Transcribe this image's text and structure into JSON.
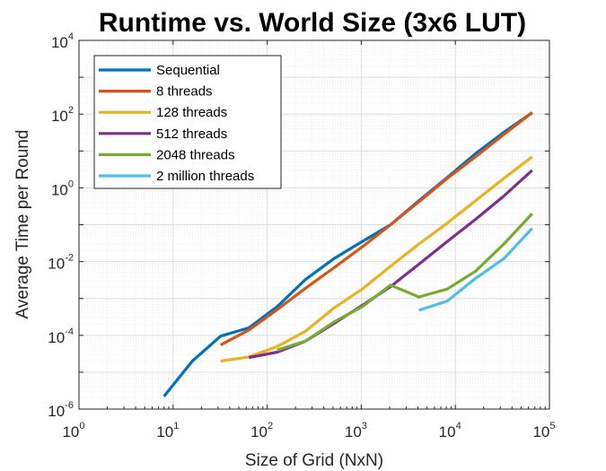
{
  "chart_data": {
    "type": "line",
    "title": "Runtime vs. World Size (3x6 LUT)",
    "xlabel": "Size of Grid (NxN)",
    "ylabel": "Average Time per Round",
    "x_scale": "log",
    "y_scale": "log",
    "xlim": [
      1,
      100000
    ],
    "ylim": [
      1e-06,
      10000
    ],
    "x_ticks": [
      {
        "base": "10",
        "exp": "0"
      },
      {
        "base": "10",
        "exp": "1"
      },
      {
        "base": "10",
        "exp": "2"
      },
      {
        "base": "10",
        "exp": "3"
      },
      {
        "base": "10",
        "exp": "4"
      },
      {
        "base": "10",
        "exp": "5"
      }
    ],
    "y_ticks": [
      {
        "base": "10",
        "exp": "-6"
      },
      {
        "base": "10",
        "exp": "-4"
      },
      {
        "base": "10",
        "exp": "-2"
      },
      {
        "base": "10",
        "exp": "0"
      },
      {
        "base": "10",
        "exp": "2"
      },
      {
        "base": "10",
        "exp": "4"
      }
    ],
    "grid": true,
    "legend_position": "top-left",
    "series": [
      {
        "name": "Sequential",
        "color": "#0072BD",
        "x": [
          8,
          16,
          32,
          64,
          128,
          256,
          512,
          1024,
          2048,
          4096,
          8192,
          16384,
          32768,
          65536
        ],
        "y": [
          2.2e-06,
          2e-05,
          9.5e-05,
          0.00016,
          0.0006,
          0.0033,
          0.012,
          0.035,
          0.1,
          0.45,
          1.9,
          8.5,
          32,
          110
        ]
      },
      {
        "name": "8 threads",
        "color": "#D95319",
        "x": [
          32,
          64,
          128,
          256,
          512,
          1024,
          2048,
          4096,
          8192,
          16384,
          32768,
          65536
        ],
        "y": [
          5.5e-05,
          0.00014,
          0.0005,
          0.0019,
          0.0068,
          0.025,
          0.1,
          0.42,
          1.8,
          7,
          28,
          110
        ]
      },
      {
        "name": "128 threads",
        "color": "#EDB120",
        "x": [
          32,
          64,
          128,
          256,
          512,
          1024,
          2048,
          4096,
          8192,
          16384,
          32768,
          65536
        ],
        "y": [
          2e-05,
          2.6e-05,
          5e-05,
          0.00013,
          0.00055,
          0.0018,
          0.0075,
          0.03,
          0.11,
          0.45,
          1.8,
          7
        ]
      },
      {
        "name": "512 threads",
        "color": "#7E2F8E",
        "x": [
          64,
          128,
          256,
          512,
          1024,
          2048,
          4096,
          8192,
          16384,
          32768,
          65536
        ],
        "y": [
          2.5e-05,
          3.5e-05,
          7e-05,
          0.00021,
          0.00065,
          0.0021,
          0.0085,
          0.035,
          0.14,
          0.6,
          3
        ]
      },
      {
        "name": "2048 threads",
        "color": "#77AC30",
        "x": [
          128,
          256,
          512,
          1024,
          2048,
          4096,
          8192,
          16384,
          32768,
          65536
        ],
        "y": [
          4e-05,
          7e-05,
          0.00023,
          0.0006,
          0.0023,
          0.0011,
          0.0018,
          0.0055,
          0.03,
          0.2
        ]
      },
      {
        "name": "2 million threads",
        "color": "#4DBEEE",
        "x": [
          4096,
          8192,
          16384,
          32768,
          65536
        ],
        "y": [
          0.00048,
          0.00085,
          0.0035,
          0.012,
          0.08
        ]
      }
    ]
  }
}
